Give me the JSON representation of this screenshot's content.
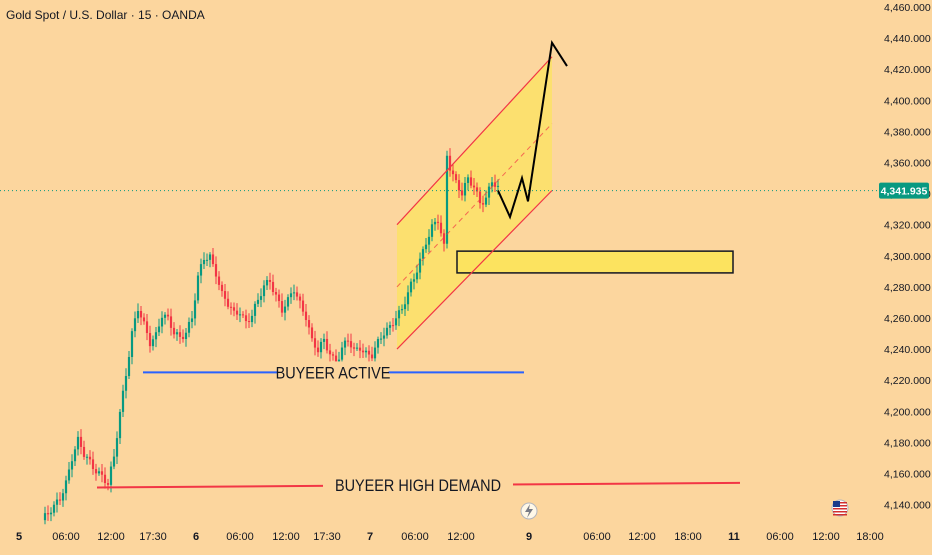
{
  "header": {
    "symbol_title": "Gold Spot / U.S. Dollar · 15 · OANDA"
  },
  "chart_data": {
    "type": "candlestick",
    "y_unit": "USD",
    "ylim": [
      4130,
      4462
    ],
    "price_ticks": [
      "4,460.000",
      "4,440.000",
      "4,420.000",
      "4,400.000",
      "4,380.000",
      "4,360.000",
      "4,340.000",
      "4,320.000",
      "4,300.000",
      "4,280.000",
      "4,260.000",
      "4,240.000",
      "4,220.000",
      "4,200.000",
      "4,180.000",
      "4,160.000",
      "4,140.000"
    ],
    "current_price": "4,341.935",
    "x_ticks": [
      "5",
      "06:00",
      "12:00",
      "17:30",
      "6",
      "06:00",
      "12:00",
      "17:30",
      "7",
      "06:00",
      "12:00",
      "9",
      "06:00",
      "12:00",
      "18:00",
      "11",
      "06:00",
      "12:00",
      "18:00"
    ],
    "x_ticks_bold": [
      "5",
      "6",
      "7",
      "9",
      "11"
    ],
    "price_path": [
      [
        0,
        4130
      ],
      [
        2,
        4133
      ],
      [
        4,
        4138
      ],
      [
        6,
        4145
      ],
      [
        8,
        4155
      ],
      [
        10,
        4170
      ],
      [
        12,
        4180
      ],
      [
        14,
        4172
      ],
      [
        16,
        4168
      ],
      [
        18,
        4163
      ],
      [
        20,
        4158
      ],
      [
        22,
        4152
      ],
      [
        24,
        4170
      ],
      [
        26,
        4200
      ],
      [
        28,
        4225
      ],
      [
        30,
        4250
      ],
      [
        32,
        4265
      ],
      [
        34,
        4255
      ],
      [
        36,
        4245
      ],
      [
        38,
        4250
      ],
      [
        40,
        4262
      ],
      [
        42,
        4258
      ],
      [
        44,
        4250
      ],
      [
        46,
        4248
      ],
      [
        48,
        4252
      ],
      [
        50,
        4260
      ],
      [
        52,
        4285
      ],
      [
        54,
        4298
      ],
      [
        56,
        4300
      ],
      [
        58,
        4290
      ],
      [
        60,
        4275
      ],
      [
        62,
        4268
      ],
      [
        64,
        4262
      ],
      [
        66,
        4265
      ],
      [
        68,
        4258
      ],
      [
        70,
        4262
      ],
      [
        72,
        4270
      ],
      [
        74,
        4280
      ],
      [
        76,
        4285
      ],
      [
        78,
        4275
      ],
      [
        80,
        4265
      ],
      [
        82,
        4270
      ],
      [
        84,
        4278
      ],
      [
        86,
        4270
      ],
      [
        88,
        4262
      ],
      [
        90,
        4245
      ],
      [
        92,
        4238
      ],
      [
        94,
        4245
      ],
      [
        96,
        4238
      ],
      [
        98,
        4232
      ],
      [
        100,
        4240
      ],
      [
        102,
        4245
      ],
      [
        104,
        4238
      ],
      [
        106,
        4242
      ],
      [
        108,
        4238
      ],
      [
        110,
        4236
      ],
      [
        112,
        4243
      ],
      [
        114,
        4250
      ],
      [
        116,
        4255
      ],
      [
        118,
        4262
      ],
      [
        120,
        4265
      ],
      [
        122,
        4275
      ],
      [
        124,
        4285
      ],
      [
        126,
        4298
      ],
      [
        128,
        4310
      ],
      [
        130,
        4318
      ],
      [
        132,
        4322
      ],
      [
        134,
        4305
      ],
      [
        135,
        4365
      ],
      [
        136,
        4358
      ],
      [
        138,
        4348
      ],
      [
        140,
        4340
      ],
      [
        142,
        4348
      ],
      [
        144,
        4344
      ],
      [
        146,
        4335
      ],
      [
        148,
        4338
      ],
      [
        150,
        4348
      ],
      [
        152,
        4342
      ]
    ],
    "projection": {
      "points": [
        [
          152,
          4342
        ],
        [
          156,
          4325
        ],
        [
          160,
          4350
        ],
        [
          162,
          4335
        ],
        [
          170,
          4437
        ],
        [
          175,
          4422
        ]
      ]
    },
    "demand_zone": {
      "price_top": 4303,
      "price_bottom": 4289
    },
    "annotations": [
      {
        "text": "BUYEER ACTIVE",
        "price": 4225,
        "color": "#2962ff"
      },
      {
        "text": "BUYEER HIGH  DEMAND",
        "price": 4151,
        "color": "#f23645"
      }
    ],
    "colors": {
      "up": "#089981",
      "down": "#f23645",
      "channel": "#f23645",
      "zone": "#fce35f",
      "price_label": "#089981"
    },
    "grid": false,
    "event_icon": "lightning-icon",
    "flag_icon": "us-flag-icon"
  }
}
